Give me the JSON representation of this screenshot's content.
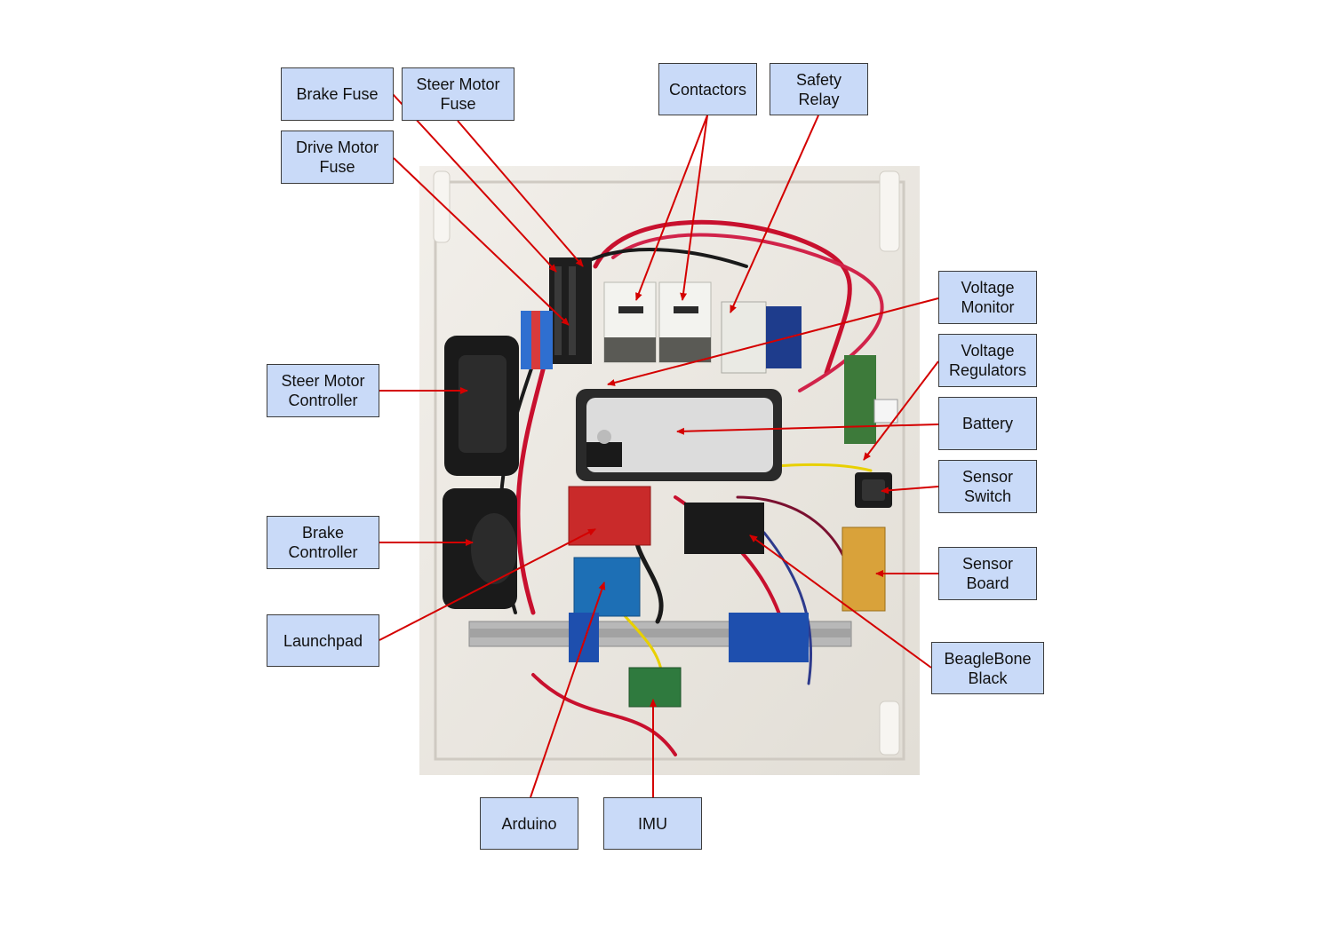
{
  "colors": {
    "label_fill": "#c9daf8",
    "label_border": "#3c3c3c",
    "leader_line": "#d40000",
    "enclosure": "#e9e5de",
    "wire_red": "#c8102e",
    "wire_black": "#1a1a1a"
  },
  "labels": {
    "brake_fuse": "Brake Fuse",
    "steer_motor_fuse": "Steer Motor\nFuse",
    "drive_motor_fuse": "Drive Motor\nFuse",
    "contactors": "Contactors",
    "safety_relay": "Safety\nRelay",
    "voltage_monitor": "Voltage\nMonitor",
    "voltage_regulators": "Voltage\nRegulators",
    "battery": "Battery",
    "sensor_switch": "Sensor\nSwitch",
    "sensor_board": "Sensor\nBoard",
    "beaglebone_black": "BeagleBone\nBlack",
    "steer_motor_controller": "Steer Motor\nController",
    "brake_controller": "Brake\nController",
    "launchpad": "Launchpad",
    "arduino": "Arduino",
    "imu": "IMU"
  }
}
